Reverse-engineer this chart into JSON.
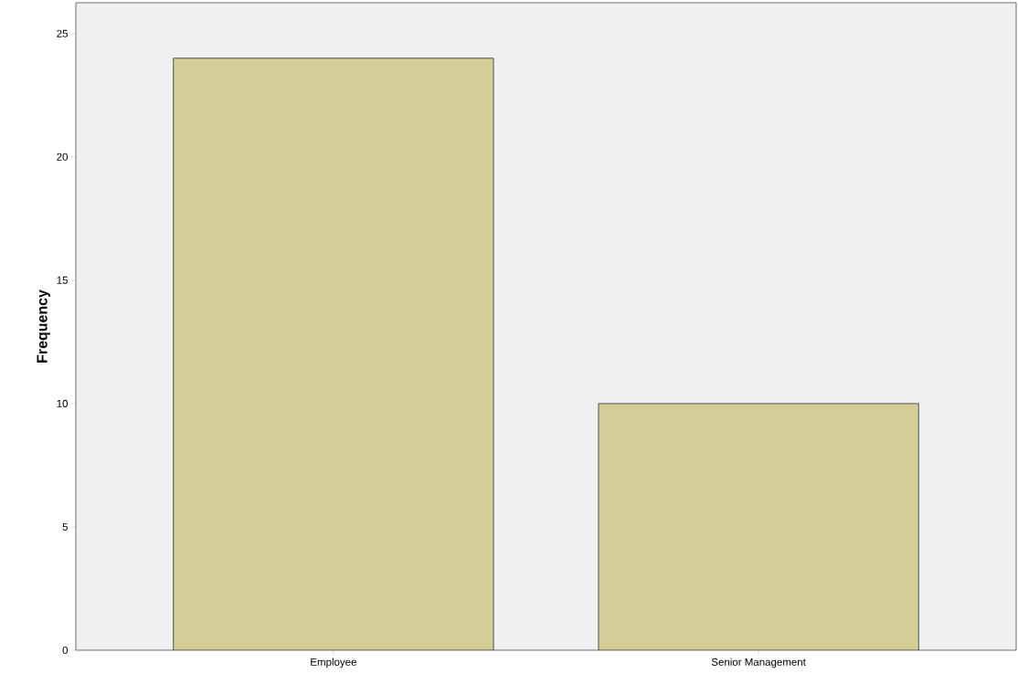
{
  "chart_data": {
    "type": "bar",
    "ylabel": "Frequency",
    "categories": [
      "Employee",
      "Senior Management"
    ],
    "values": [
      24,
      10
    ],
    "color": "#d3ce97",
    "ylim": [
      0,
      26.25
    ],
    "yticks": [
      0,
      5,
      10,
      15,
      20,
      25
    ],
    "grid": false
  }
}
